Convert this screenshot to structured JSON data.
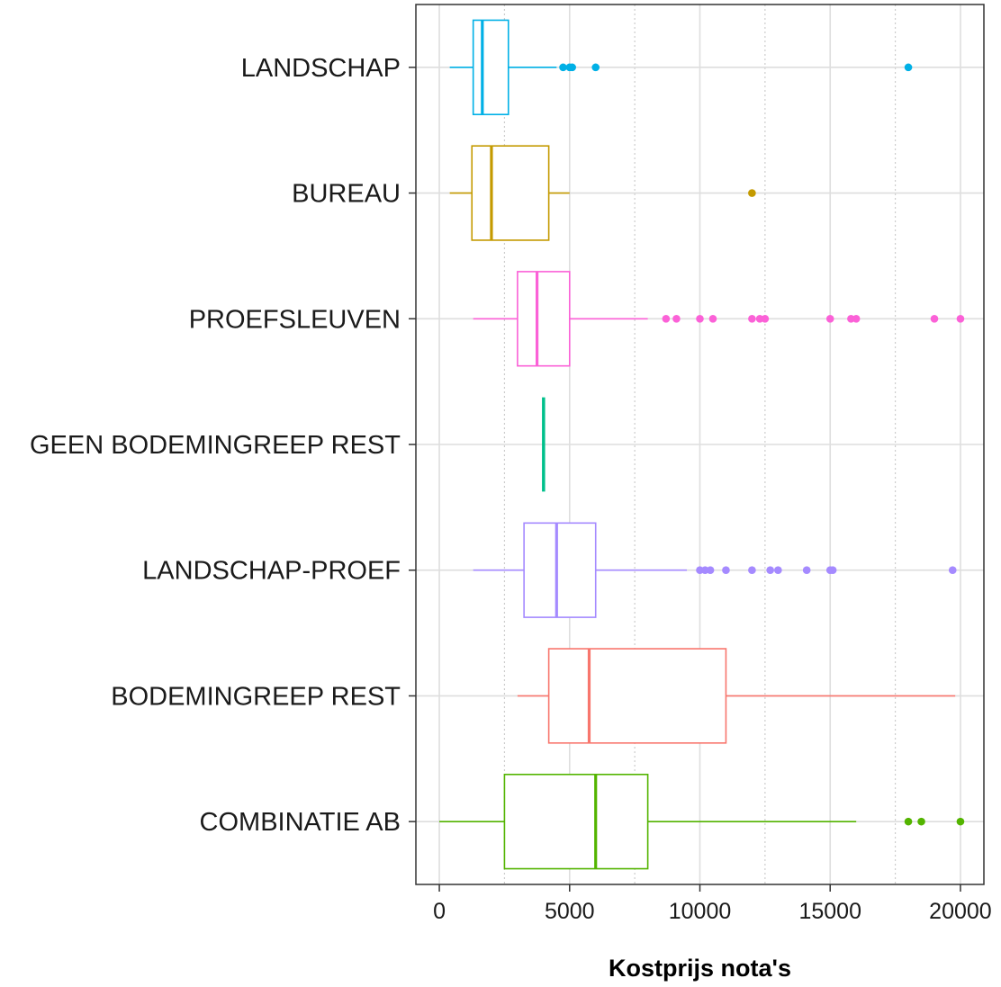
{
  "chart_data": {
    "type": "boxplot",
    "orientation": "horizontal",
    "xlabel": "Kostprijs nota's",
    "ylabel": "",
    "xlim": [
      -900,
      20900
    ],
    "x_ticks": [
      0,
      5000,
      10000,
      15000,
      20000
    ],
    "x_tick_labels": [
      "0",
      "5000",
      "10000",
      "15000",
      "20000"
    ],
    "grid": true,
    "legend": "none",
    "categories": [
      "LANDSCHAP",
      "BUREAU",
      "PROEFSLEUVEN",
      "GEEN BODEMINGREEP REST",
      "LANDSCHAP-PROEF",
      "BODEMINGREEP REST",
      "COMBINATIE AB"
    ],
    "series": [
      {
        "category": "LANDSCHAP",
        "color": "#00B0E6",
        "whisker_low": 400,
        "q1": 1300,
        "median": 1650,
        "q3": 2650,
        "whisker_high": 4500,
        "outliers": [
          4750,
          5000,
          5100,
          6000,
          18000
        ]
      },
      {
        "category": "BUREAU",
        "color": "#C49A00",
        "whisker_low": 400,
        "q1": 1250,
        "median": 2000,
        "q3": 4200,
        "whisker_high": 5000,
        "outliers": [
          12000
        ]
      },
      {
        "category": "PROEFSLEUVEN",
        "color": "#FB61D7",
        "whisker_low": 1300,
        "q1": 3000,
        "median": 3750,
        "q3": 5000,
        "whisker_high": 8000,
        "outliers": [
          8700,
          9100,
          10000,
          10500,
          12000,
          12300,
          12500,
          15000,
          15800,
          16000,
          19000,
          20000
        ]
      },
      {
        "category": "GEEN BODEMINGREEP REST",
        "color": "#00C08B",
        "whisker_low": 4000,
        "q1": 4000,
        "median": 4000,
        "q3": 4000,
        "whisker_high": 4000,
        "outliers": []
      },
      {
        "category": "LANDSCHAP-PROEF",
        "color": "#A58AFF",
        "whisker_low": 1300,
        "q1": 3250,
        "median": 4500,
        "q3": 6000,
        "whisker_high": 9500,
        "outliers": [
          10000,
          10200,
          10400,
          11000,
          12000,
          12700,
          13000,
          14100,
          15000,
          15100,
          19700
        ]
      },
      {
        "category": "BODEMINGREEP REST",
        "color": "#F8766D",
        "whisker_low": 3000,
        "q1": 4200,
        "median": 5750,
        "q3": 11000,
        "whisker_high": 19800,
        "outliers": []
      },
      {
        "category": "COMBINATIE AB",
        "color": "#53B400",
        "whisker_low": 0,
        "q1": 2500,
        "median": 6000,
        "q3": 8000,
        "whisker_high": 16000,
        "outliers": [
          18000,
          18500,
          20000
        ]
      }
    ]
  }
}
